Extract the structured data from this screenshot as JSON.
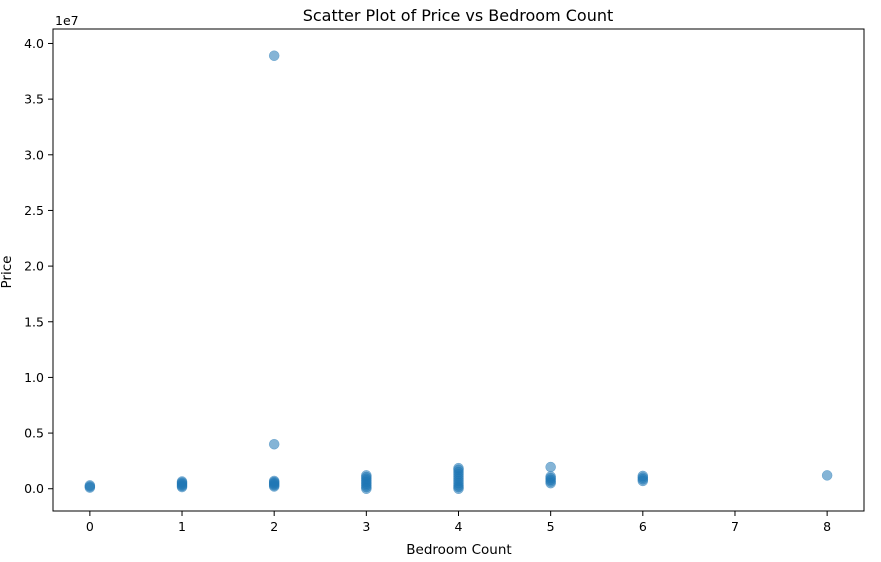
{
  "chart_data": {
    "type": "scatter",
    "title": "Scatter Plot of Price vs Bedroom Count",
    "xlabel": "Bedroom Count",
    "ylabel": "Price",
    "y_offset_label": "1e7",
    "xlim": [
      -0.4,
      8.4
    ],
    "ylim": [
      -2000000,
      41300000
    ],
    "x_ticks": [
      0,
      1,
      2,
      3,
      4,
      5,
      6,
      7,
      8
    ],
    "y_ticks": [
      0,
      5000000,
      10000000,
      15000000,
      20000000,
      25000000,
      30000000,
      35000000,
      40000000
    ],
    "y_tick_labels": [
      "0.0",
      "0.5",
      "1.0",
      "1.5",
      "2.0",
      "2.5",
      "3.0",
      "3.5",
      "4.0"
    ],
    "grid": false,
    "marker_color": "#1f77b4",
    "marker_alpha": 0.55,
    "points": [
      {
        "x": 0,
        "y": 100000
      },
      {
        "x": 0,
        "y": 200000
      },
      {
        "x": 0,
        "y": 300000
      },
      {
        "x": 1,
        "y": 150000
      },
      {
        "x": 1,
        "y": 250000
      },
      {
        "x": 1,
        "y": 350000
      },
      {
        "x": 1,
        "y": 450000
      },
      {
        "x": 1,
        "y": 550000
      },
      {
        "x": 1,
        "y": 650000
      },
      {
        "x": 2,
        "y": 38900000
      },
      {
        "x": 2,
        "y": 4000000
      },
      {
        "x": 2,
        "y": 200000
      },
      {
        "x": 2,
        "y": 300000
      },
      {
        "x": 2,
        "y": 400000
      },
      {
        "x": 2,
        "y": 500000
      },
      {
        "x": 2,
        "y": 600000
      },
      {
        "x": 2,
        "y": 700000
      },
      {
        "x": 3,
        "y": 0
      },
      {
        "x": 3,
        "y": 150000
      },
      {
        "x": 3,
        "y": 300000
      },
      {
        "x": 3,
        "y": 450000
      },
      {
        "x": 3,
        "y": 600000
      },
      {
        "x": 3,
        "y": 750000
      },
      {
        "x": 3,
        "y": 900000
      },
      {
        "x": 3,
        "y": 1050000
      },
      {
        "x": 3,
        "y": 1200000
      },
      {
        "x": 4,
        "y": 0
      },
      {
        "x": 4,
        "y": 150000
      },
      {
        "x": 4,
        "y": 300000
      },
      {
        "x": 4,
        "y": 500000
      },
      {
        "x": 4,
        "y": 700000
      },
      {
        "x": 4,
        "y": 900000
      },
      {
        "x": 4,
        "y": 1100000
      },
      {
        "x": 4,
        "y": 1300000
      },
      {
        "x": 4,
        "y": 1500000
      },
      {
        "x": 4,
        "y": 1700000
      },
      {
        "x": 4,
        "y": 1850000
      },
      {
        "x": 5,
        "y": 500000
      },
      {
        "x": 5,
        "y": 650000
      },
      {
        "x": 5,
        "y": 800000
      },
      {
        "x": 5,
        "y": 950000
      },
      {
        "x": 5,
        "y": 1100000
      },
      {
        "x": 5,
        "y": 1950000
      },
      {
        "x": 6,
        "y": 700000
      },
      {
        "x": 6,
        "y": 850000
      },
      {
        "x": 6,
        "y": 1000000
      },
      {
        "x": 6,
        "y": 1150000
      },
      {
        "x": 8,
        "y": 1200000
      }
    ]
  }
}
